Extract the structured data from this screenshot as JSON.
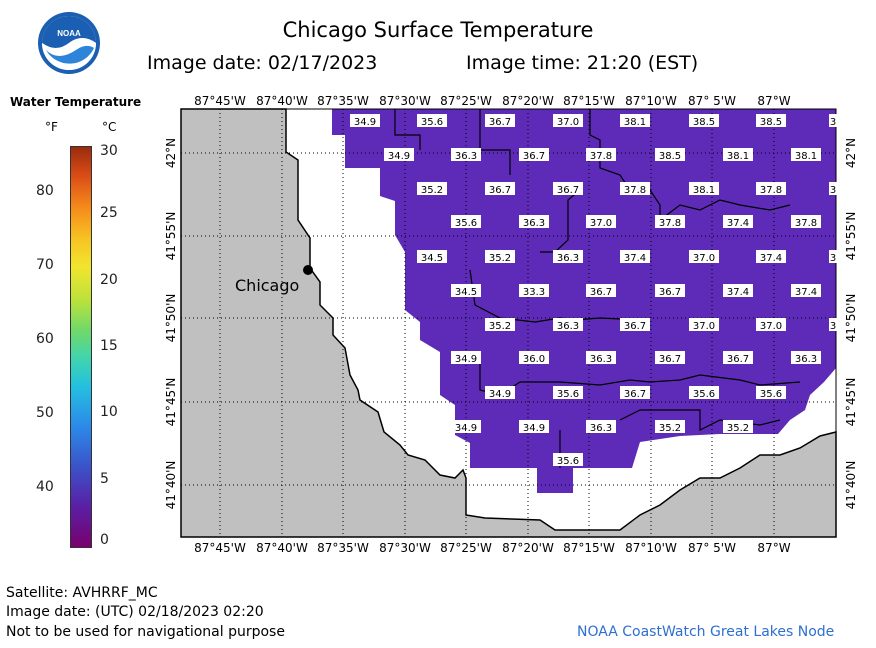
{
  "header": {
    "title": "Chicago Surface Temperature",
    "image_date": "Image date: 02/17/2023",
    "image_time": "Image time: 21:20 (EST)",
    "logo_text": "NOAA"
  },
  "legend": {
    "title": "Water Temperature",
    "unit_f": "°F",
    "unit_c": "°C",
    "f_ticks": [
      "80",
      "70",
      "60",
      "50",
      "40"
    ],
    "c_ticks": [
      "30",
      "25",
      "20",
      "15",
      "10",
      "5",
      "0"
    ],
    "colors": [
      "#7a006e",
      "#5a1fa4",
      "#3b52c9",
      "#2c89e8",
      "#24bfe0",
      "#3fd5b0",
      "#6fd86a",
      "#bde23a",
      "#f2e52e",
      "#f7c323",
      "#f58a1b",
      "#d94b16",
      "#9b2b0e"
    ]
  },
  "map": {
    "lon_labels": [
      "87°45'W",
      "87°40'W",
      "87°35'W",
      "87°30'W",
      "87°25'W",
      "87°20'W",
      "87°15'W",
      "87°10'W",
      "87° 5'W",
      "87°W"
    ],
    "lat_labels": [
      "42°N",
      "41°55'N",
      "41°50'N",
      "41°45'N",
      "41°40'N"
    ],
    "city_label": "Chicago",
    "colors": {
      "land": "#c0c0c0",
      "water": "#5e2bb8",
      "nodata": "#ffffff"
    },
    "temperature_labels": [
      {
        "v": "34.9"
      },
      {
        "v": "35.6"
      },
      {
        "v": "36.7"
      },
      {
        "v": "37.0"
      },
      {
        "v": "38.1"
      },
      {
        "v": "38.5"
      },
      {
        "v": "38.5"
      },
      {
        "v": "3"
      },
      {
        "v": "34.9"
      },
      {
        "v": "36.3"
      },
      {
        "v": "36.7"
      },
      {
        "v": "37.8"
      },
      {
        "v": "38.5"
      },
      {
        "v": "38.1"
      },
      {
        "v": "38.1"
      },
      {
        "v": "35.2"
      },
      {
        "v": "36.7"
      },
      {
        "v": "36.7"
      },
      {
        "v": "37.8"
      },
      {
        "v": "38.1"
      },
      {
        "v": "37.8"
      },
      {
        "v": "3"
      },
      {
        "v": "35.6"
      },
      {
        "v": "36.3"
      },
      {
        "v": "37.0"
      },
      {
        "v": "37.8"
      },
      {
        "v": "37.4"
      },
      {
        "v": "37.8"
      },
      {
        "v": "34.5"
      },
      {
        "v": "35.2"
      },
      {
        "v": "36.3"
      },
      {
        "v": "37.4"
      },
      {
        "v": "37.0"
      },
      {
        "v": "37.4"
      },
      {
        "v": "3"
      },
      {
        "v": "34.5"
      },
      {
        "v": "33.3"
      },
      {
        "v": "36.7"
      },
      {
        "v": "36.7"
      },
      {
        "v": "37.4"
      },
      {
        "v": "37.4"
      },
      {
        "v": "35.2"
      },
      {
        "v": "36.3"
      },
      {
        "v": "36.7"
      },
      {
        "v": "37.0"
      },
      {
        "v": "37.0"
      },
      {
        "v": "3"
      },
      {
        "v": "34.9"
      },
      {
        "v": "36.0"
      },
      {
        "v": "36.3"
      },
      {
        "v": "36.7"
      },
      {
        "v": "36.7"
      },
      {
        "v": "36.3"
      },
      {
        "v": "34.9"
      },
      {
        "v": "35.6"
      },
      {
        "v": "36.7"
      },
      {
        "v": "35.6"
      },
      {
        "v": "35.6"
      },
      {
        "v": "34.9"
      },
      {
        "v": "34.9"
      },
      {
        "v": "36.3"
      },
      {
        "v": "35.2"
      },
      {
        "v": "35.2"
      },
      {
        "v": "35.6"
      }
    ]
  },
  "footer": {
    "satellite": "Satellite: AVHRRF_MC",
    "utc_date": "Image date: (UTC) 02/18/2023  02:20",
    "disclaimer": "Not to be used for navigational purpose",
    "credit": "NOAA CoastWatch Great Lakes Node"
  }
}
